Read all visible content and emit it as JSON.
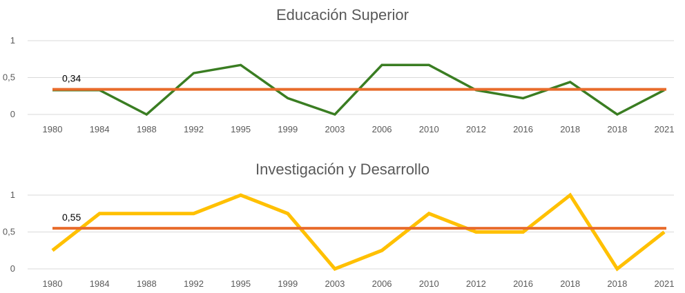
{
  "chart_data": [
    {
      "type": "line",
      "title": "Educación Superior",
      "xlabel": "",
      "ylabel": "",
      "categories": [
        "1980",
        "1984",
        "1988",
        "1992",
        "1995",
        "1999",
        "2003",
        "2006",
        "2010",
        "2012",
        "2016",
        "2018",
        "2018",
        "2021"
      ],
      "ylim": [
        0,
        1
      ],
      "yticks": [
        "0",
        "0,5",
        "1"
      ],
      "grid": true,
      "series": [
        {
          "color": "#3a7d22",
          "values": [
            0.33,
            0.33,
            0.0,
            0.56,
            0.67,
            0.22,
            0.0,
            0.67,
            0.67,
            0.33,
            0.22,
            0.44,
            0.0,
            0.33
          ]
        }
      ],
      "reference_line": {
        "value": 0.34,
        "label": "0,34",
        "color": "#e86b2b"
      }
    },
    {
      "type": "line",
      "title": "Investigación y Desarrollo",
      "xlabel": "",
      "ylabel": "",
      "categories": [
        "1980",
        "1984",
        "1988",
        "1992",
        "1995",
        "1999",
        "2003",
        "2006",
        "2010",
        "2012",
        "2016",
        "2018",
        "2018",
        "2021"
      ],
      "ylim": [
        0,
        1
      ],
      "yticks": [
        "0",
        "0,5",
        "1"
      ],
      "grid": true,
      "series": [
        {
          "color": "#ffc000",
          "values": [
            0.25,
            0.75,
            0.75,
            0.75,
            1.0,
            0.75,
            0.0,
            0.25,
            0.75,
            0.5,
            0.5,
            1.0,
            0.0,
            0.5
          ]
        }
      ],
      "reference_line": {
        "value": 0.55,
        "label": "0,55",
        "color": "#e86b2b"
      }
    }
  ]
}
